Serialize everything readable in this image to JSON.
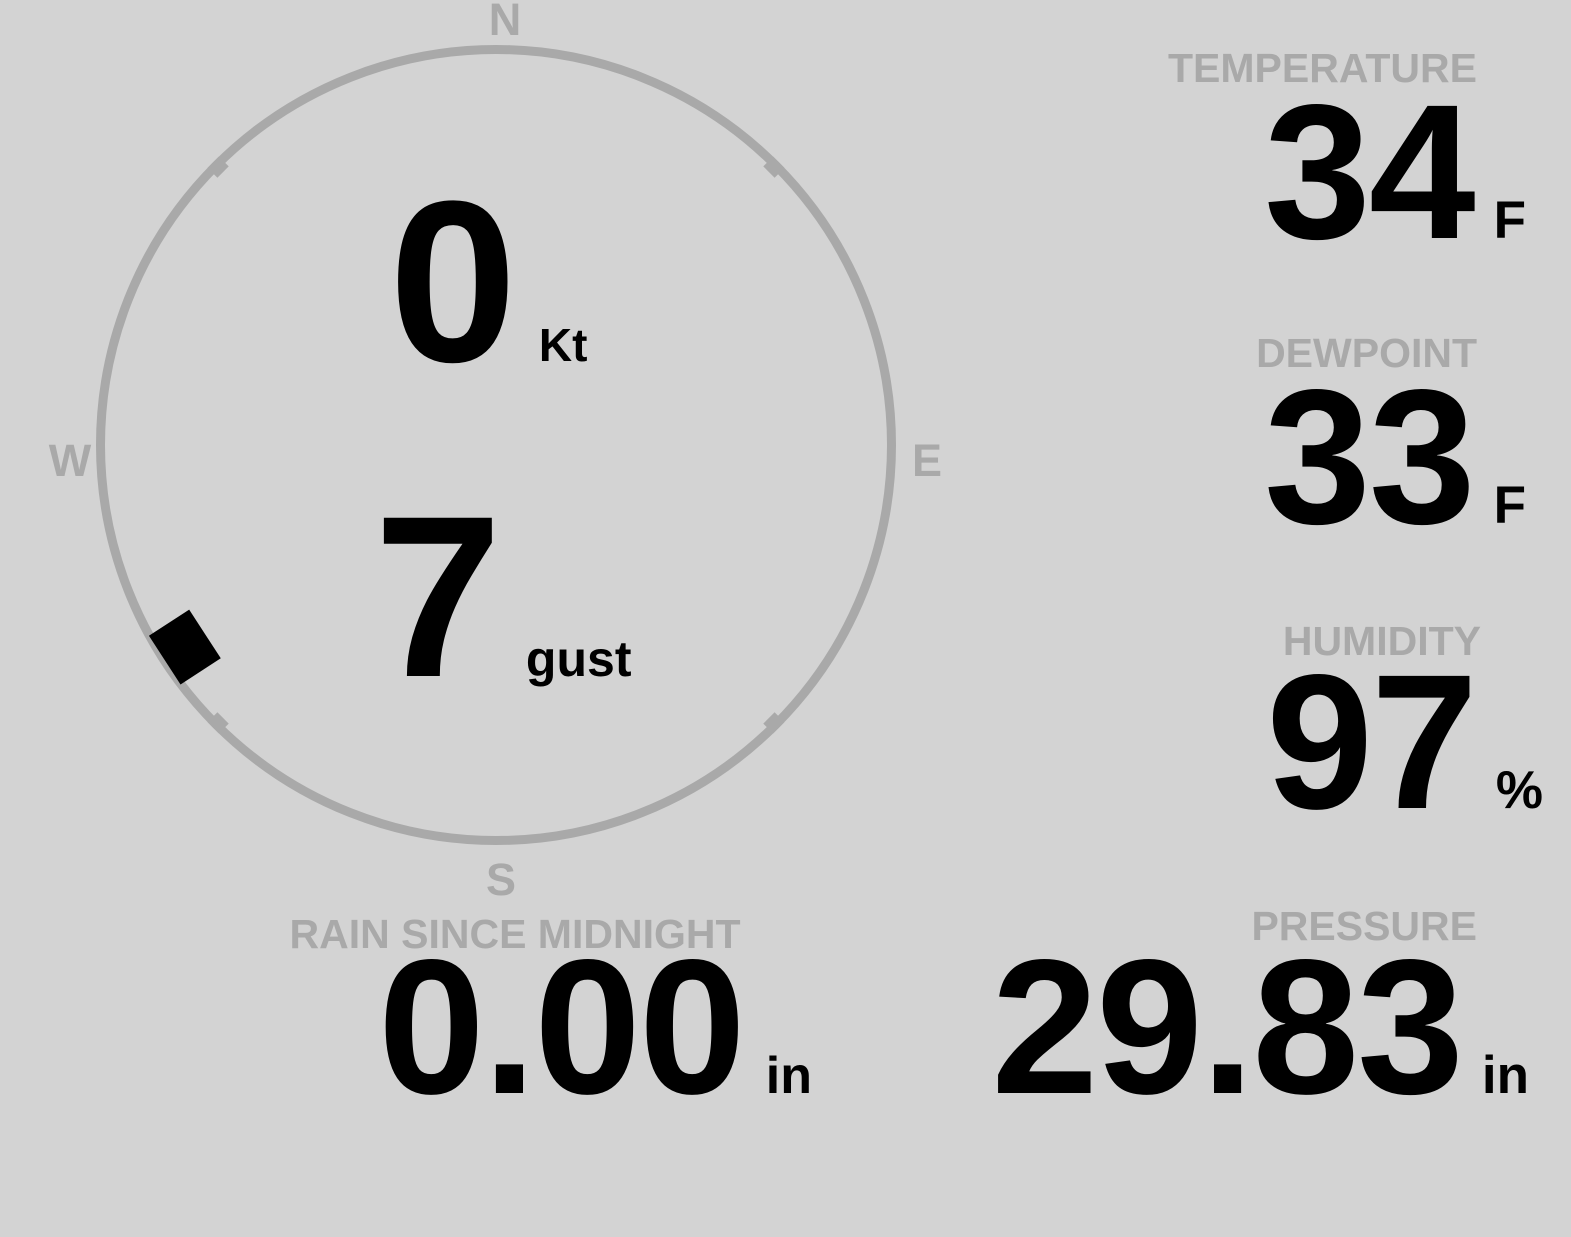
{
  "colors": {
    "background": "#d3d3d3",
    "muted": "#a9a9a9",
    "value_text": "#000000",
    "marker": "#000000"
  },
  "compass": {
    "cardinal_n": "N",
    "cardinal_e": "E",
    "cardinal_s": "S",
    "cardinal_w": "W",
    "speed_value": "0",
    "speed_unit": "Kt",
    "gust_value": "7",
    "gust_unit": "gust",
    "direction_bearing_deg": 237
  },
  "metrics": [
    {
      "id": "temperature",
      "label": "TEMPERATURE",
      "value": "34",
      "unit": "F"
    },
    {
      "id": "dewpoint",
      "label": "DEWPOINT",
      "value": "33",
      "unit": "F"
    },
    {
      "id": "humidity",
      "label": "HUMIDITY",
      "value": "97",
      "unit": "%"
    },
    {
      "id": "pressure",
      "label": "PRESSURE",
      "value": "29.83",
      "unit": "in"
    }
  ],
  "rain": {
    "label": "RAIN SINCE MIDNIGHT",
    "value": "0.00",
    "unit": "in"
  }
}
